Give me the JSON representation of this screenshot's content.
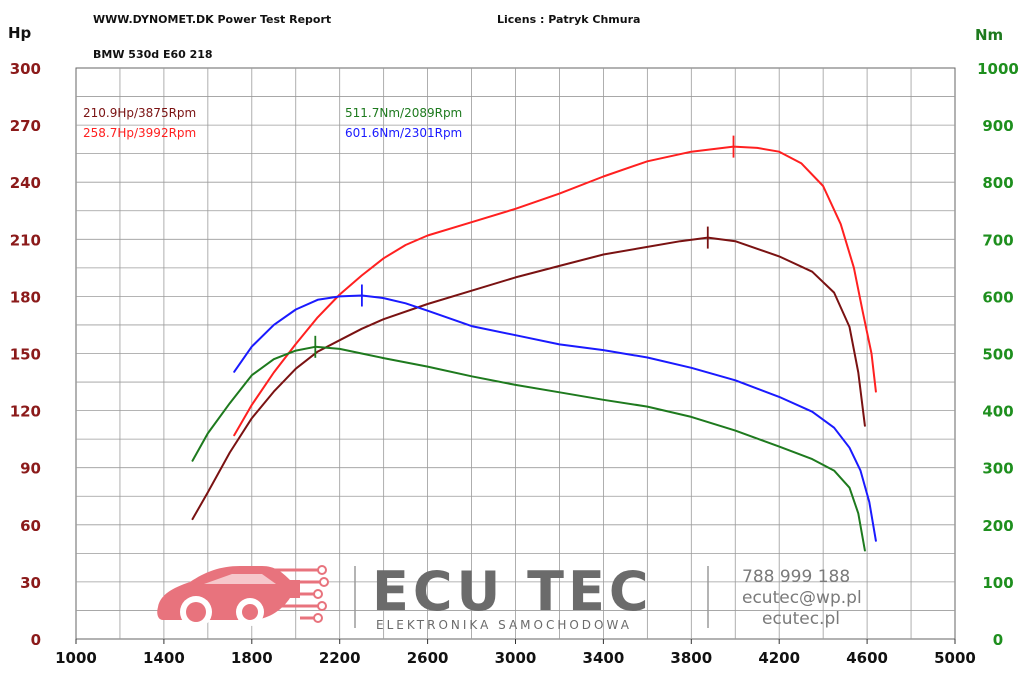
{
  "header": {
    "site_title": "WWW.DYNOMET.DK  Power Test Report",
    "license": "Licens :  Patryk Chmura",
    "vehicle": "BMW 530d E60 218"
  },
  "watermark": {
    "brand": "ECU TEC",
    "tagline": "ELEKTRONIKA SAMOCHODOWA",
    "phone": "788 999 188",
    "email": "ecutec@wp.pl",
    "website": "ecutec.pl",
    "accent_color": "#e8737d",
    "text_color": "#6b6b6b"
  },
  "chart_data": {
    "type": "line",
    "x_axis": {
      "range": [
        1000,
        5000
      ],
      "ticks": [
        "1000",
        "1400",
        "1800",
        "2200",
        "2600",
        "3000",
        "3400",
        "3800",
        "4200",
        "4600",
        "5000"
      ]
    },
    "y_left": {
      "label": "Hp",
      "range": [
        0,
        300
      ],
      "ticks": [
        "0",
        "30",
        "60",
        "90",
        "120",
        "150",
        "180",
        "210",
        "240",
        "270",
        "300"
      ],
      "color": "#8b1a1a"
    },
    "y_right": {
      "label": "Nm",
      "range": [
        0,
        1000
      ],
      "ticks": [
        "0",
        "100",
        "200",
        "300",
        "400",
        "500",
        "600",
        "700",
        "800",
        "900",
        "1000"
      ],
      "color": "#1e8f1e"
    },
    "grid": true,
    "annotations": [
      {
        "text": "210.9Hp/3875Rpm",
        "color": "#7a1212"
      },
      {
        "text": "258.7Hp/3992Rpm",
        "color": "#ff2020"
      },
      {
        "text": "511.7Nm/2089Rpm",
        "color": "#1e7a1e"
      },
      {
        "text": "601.6Nm/2301Rpm",
        "color": "#1a1aff"
      }
    ],
    "series": [
      {
        "axis": "left",
        "color": "#7a1212",
        "peak": {
          "x": 3875,
          "y": 210.9
        },
        "points": [
          [
            1530,
            63
          ],
          [
            1600,
            77
          ],
          [
            1700,
            98
          ],
          [
            1800,
            116
          ],
          [
            1900,
            130
          ],
          [
            2000,
            142
          ],
          [
            2100,
            151
          ],
          [
            2200,
            157
          ],
          [
            2300,
            163
          ],
          [
            2400,
            168
          ],
          [
            2600,
            176
          ],
          [
            2800,
            183
          ],
          [
            3000,
            190
          ],
          [
            3200,
            196
          ],
          [
            3400,
            202
          ],
          [
            3600,
            206
          ],
          [
            3750,
            209
          ],
          [
            3875,
            210.9
          ],
          [
            4000,
            209
          ],
          [
            4200,
            201
          ],
          [
            4350,
            193
          ],
          [
            4450,
            182
          ],
          [
            4520,
            164
          ],
          [
            4560,
            140
          ],
          [
            4590,
            112
          ]
        ]
      },
      {
        "axis": "left",
        "color": "#ff2020",
        "peak": {
          "x": 3992,
          "y": 258.7
        },
        "points": [
          [
            1720,
            107
          ],
          [
            1800,
            123
          ],
          [
            1900,
            140
          ],
          [
            2000,
            155
          ],
          [
            2100,
            169
          ],
          [
            2200,
            181
          ],
          [
            2300,
            191
          ],
          [
            2400,
            200
          ],
          [
            2500,
            207
          ],
          [
            2600,
            212
          ],
          [
            2800,
            219
          ],
          [
            3000,
            226
          ],
          [
            3200,
            234
          ],
          [
            3400,
            243
          ],
          [
            3600,
            251
          ],
          [
            3800,
            256
          ],
          [
            3992,
            258.7
          ],
          [
            4100,
            258
          ],
          [
            4200,
            256
          ],
          [
            4300,
            250
          ],
          [
            4400,
            238
          ],
          [
            4480,
            218
          ],
          [
            4540,
            195
          ],
          [
            4580,
            172
          ],
          [
            4620,
            150
          ],
          [
            4640,
            130
          ]
        ]
      },
      {
        "axis": "right",
        "color": "#1e7a1e",
        "peak": {
          "x": 2089,
          "y": 511.7
        },
        "points": [
          [
            1530,
            312
          ],
          [
            1600,
            360
          ],
          [
            1700,
            413
          ],
          [
            1800,
            462
          ],
          [
            1900,
            490
          ],
          [
            2000,
            505
          ],
          [
            2089,
            511.7
          ],
          [
            2200,
            508
          ],
          [
            2300,
            500
          ],
          [
            2400,
            492
          ],
          [
            2600,
            477
          ],
          [
            2800,
            460
          ],
          [
            3000,
            445
          ],
          [
            3200,
            432
          ],
          [
            3400,
            419
          ],
          [
            3600,
            407
          ],
          [
            3800,
            389
          ],
          [
            4000,
            365
          ],
          [
            4200,
            337
          ],
          [
            4350,
            315
          ],
          [
            4450,
            295
          ],
          [
            4520,
            265
          ],
          [
            4560,
            220
          ],
          [
            4590,
            155
          ]
        ]
      },
      {
        "axis": "right",
        "color": "#1a1aff",
        "peak": {
          "x": 2301,
          "y": 601.6
        },
        "points": [
          [
            1720,
            468
          ],
          [
            1800,
            512
          ],
          [
            1900,
            550
          ],
          [
            2000,
            577
          ],
          [
            2100,
            594
          ],
          [
            2200,
            600
          ],
          [
            2301,
            601.6
          ],
          [
            2400,
            597
          ],
          [
            2500,
            588
          ],
          [
            2600,
            575
          ],
          [
            2800,
            548
          ],
          [
            3000,
            532
          ],
          [
            3200,
            516
          ],
          [
            3400,
            506
          ],
          [
            3600,
            493
          ],
          [
            3800,
            475
          ],
          [
            4000,
            453
          ],
          [
            4200,
            424
          ],
          [
            4350,
            398
          ],
          [
            4450,
            370
          ],
          [
            4520,
            335
          ],
          [
            4570,
            295
          ],
          [
            4610,
            240
          ],
          [
            4640,
            172
          ]
        ]
      }
    ]
  }
}
